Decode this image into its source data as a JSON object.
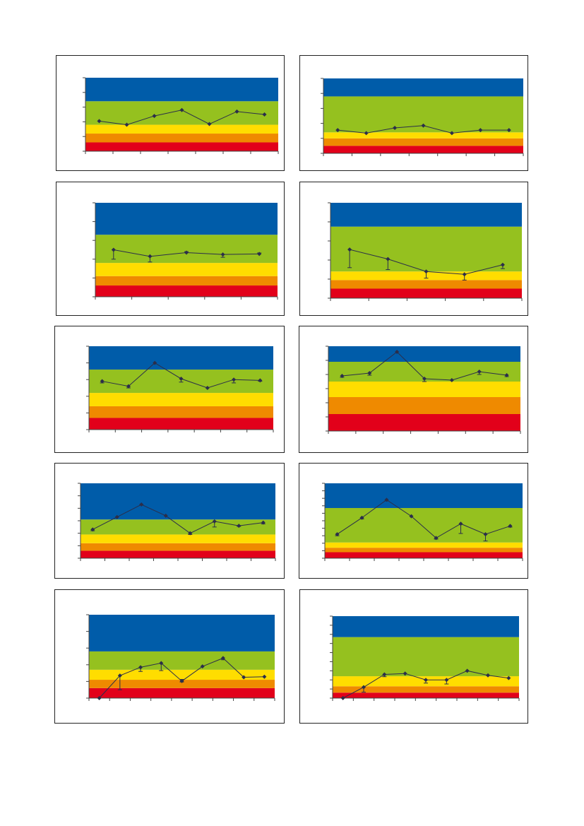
{
  "colors": {
    "band_red": "#E2001A",
    "band_orange": "#EF8A00",
    "band_yellow": "#FFDD00",
    "band_green": "#95C11F",
    "band_blue": "#005CA9",
    "line": "#2B2E4A",
    "axis": "#444444"
  },
  "chart_data": [
    {
      "type": "line",
      "title": "",
      "xlabel": "",
      "ylabel": "",
      "ylim": [
        0,
        5
      ],
      "bands": [
        0.6,
        1.2,
        1.8,
        3.4,
        5
      ],
      "series": [
        {
          "values": [
            2.05,
            1.8,
            2.4,
            2.8,
            1.85,
            2.7,
            2.5
          ]
        }
      ],
      "x": [
        0.5,
        1.5,
        2.5,
        3.5,
        4.5,
        5.5,
        6.5
      ],
      "xlim": [
        0,
        7
      ],
      "xticks": 7
    },
    {
      "type": "line",
      "title": "",
      "xlabel": "",
      "ylabel": "",
      "ylim": [
        0,
        5
      ],
      "bands": [
        0.5,
        1.0,
        1.4,
        3.8,
        5
      ],
      "series": [
        {
          "values": [
            1.55,
            1.35,
            1.7,
            1.85,
            1.35,
            1.55,
            1.55
          ]
        }
      ],
      "x": [
        0.5,
        1.5,
        2.5,
        3.5,
        4.5,
        5.5,
        6.5
      ],
      "xlim": [
        0,
        7
      ],
      "xticks": 7
    },
    {
      "type": "line",
      "title": "",
      "xlabel": "",
      "ylabel": "",
      "ylim": [
        0,
        5
      ],
      "bands": [
        0.6,
        1.1,
        1.8,
        3.3,
        5
      ],
      "series": [
        {
          "values": [
            2.5,
            2.15,
            2.35,
            2.25,
            2.28
          ],
          "err_low": [
            0.5,
            0.3,
            0,
            0.15,
            0
          ],
          "err_high": [
            0,
            0,
            0.05,
            0,
            0.05
          ]
        }
      ],
      "x": [
        0.5,
        1.5,
        2.5,
        3.5,
        4.5
      ],
      "xlim": [
        0,
        5
      ],
      "xticks": 5
    },
    {
      "type": "line",
      "title": "",
      "xlabel": "",
      "ylabel": "",
      "ylim": [
        0,
        5
      ],
      "bands": [
        0.5,
        0.95,
        1.4,
        3.75,
        5
      ],
      "series": [
        {
          "values": [
            2.55,
            2.05,
            1.4,
            1.25,
            1.75
          ],
          "err_low": [
            0.95,
            0.55,
            0.35,
            0.3,
            0.2
          ],
          "err_high": [
            0,
            0,
            0,
            0,
            0
          ]
        }
      ],
      "x": [
        0.5,
        1.5,
        2.5,
        3.5,
        4.5
      ],
      "xlim": [
        0,
        5
      ],
      "xticks": 5
    },
    {
      "type": "line",
      "title": "",
      "xlabel": "",
      "ylabel": "",
      "ylim": [
        0,
        5
      ],
      "bands": [
        0.7,
        1.4,
        2.2,
        3.6,
        5
      ],
      "series": [
        {
          "values": [
            2.9,
            2.6,
            4,
            3.05,
            2.5,
            3,
            2.95
          ],
          "err_low": [
            0.1,
            0.1,
            0,
            0.2,
            0,
            0.2,
            0.05
          ],
          "err_high": [
            0,
            0,
            0,
            0,
            0,
            0,
            0
          ]
        }
      ],
      "x": [
        0.5,
        1.5,
        2.5,
        3.5,
        4.5,
        5.5,
        6.5
      ],
      "xlim": [
        0,
        7
      ],
      "xticks": 7
    },
    {
      "type": "line",
      "title": "",
      "xlabel": "",
      "ylabel": "",
      "ylim": [
        0,
        6
      ],
      "bands": [
        1.2,
        2.4,
        3.5,
        4.9,
        6
      ],
      "series": [
        {
          "values": [
            3.9,
            4.1,
            5.6,
            3.7,
            3.6,
            4.2,
            3.95
          ],
          "err_low": [
            0.1,
            0.15,
            0,
            0.2,
            0,
            0.2,
            0.1
          ],
          "err_high": [
            0,
            0,
            0,
            0,
            0,
            0,
            0
          ]
        }
      ],
      "x": [
        0.5,
        1.5,
        2.5,
        3.5,
        4.5,
        5.5,
        6.5
      ],
      "xlim": [
        0,
        7
      ],
      "xticks": 7
    },
    {
      "type": "line",
      "title": "",
      "xlabel": "",
      "ylabel": "",
      "ylim": [
        0,
        6
      ],
      "bands": [
        0.6,
        1.2,
        1.9,
        3.1,
        6
      ],
      "series": [
        {
          "values": [
            2.3,
            3.3,
            4.3,
            3.4,
            2,
            2.95,
            2.6,
            2.85
          ],
          "err_low": [
            0.1,
            0,
            0.05,
            0,
            0.1,
            0.45,
            0.05,
            0.1
          ],
          "err_high": [
            0,
            0,
            0,
            0,
            0,
            0,
            0,
            0
          ]
        }
      ],
      "x": [
        0.5,
        1.5,
        2.5,
        3.5,
        4.5,
        5.5,
        6.5,
        7.5
      ],
      "xlim": [
        0,
        8
      ],
      "xticks": 8
    },
    {
      "type": "line",
      "title": "",
      "xlabel": "",
      "ylabel": "",
      "ylim": [
        0,
        10
      ],
      "bands": [
        0.8,
        1.4,
        2.1,
        6.7,
        10
      ],
      "series": [
        {
          "values": [
            3.2,
            5.4,
            7.8,
            5.6,
            2.7,
            4.6,
            3.2,
            4.3
          ],
          "err_low": [
            0.2,
            0.15,
            0.15,
            0,
            0.15,
            1.3,
            0.9,
            0.15
          ],
          "err_high": [
            0,
            0,
            0,
            0,
            0,
            0,
            0,
            0
          ]
        }
      ],
      "x": [
        0.5,
        1.5,
        2.5,
        3.5,
        4.5,
        5.5,
        6.5,
        7.5
      ],
      "xlim": [
        0,
        8
      ],
      "xticks": 8
    },
    {
      "type": "line",
      "title": "",
      "xlabel": "",
      "ylabel": "",
      "ylim": [
        0,
        5
      ],
      "bands": [
        0.6,
        1.1,
        1.7,
        2.8,
        5
      ],
      "series": [
        {
          "values": [
            0,
            1.35,
            1.85,
            2.1,
            1.02,
            1.9,
            2.4,
            1.25,
            1.28
          ],
          "err_low": [
            0,
            0.85,
            0.25,
            0.45,
            0.05,
            0,
            0.1,
            0,
            0
          ],
          "err_high": [
            0,
            0,
            0,
            0,
            0.1,
            0,
            0,
            0,
            0
          ]
        }
      ],
      "x": [
        0.5,
        1.5,
        2.5,
        3.5,
        4.5,
        5.5,
        6.5,
        7.5,
        8.5
      ],
      "xlim": [
        0,
        9
      ],
      "xticks": 9
    },
    {
      "type": "line",
      "title": "",
      "xlabel": "",
      "ylabel": "",
      "ylim": [
        0,
        9
      ],
      "bands": [
        0.6,
        1.3,
        2.4,
        6.7,
        9
      ],
      "series": [
        {
          "values": [
            0,
            1.2,
            2.6,
            2.7,
            2,
            2,
            3,
            2.5,
            2.2
          ],
          "err_low": [
            0,
            0.55,
            0.25,
            0,
            0.35,
            0.45,
            0,
            0,
            0
          ],
          "err_high": [
            0,
            0,
            0,
            0,
            0,
            0,
            0,
            0,
            0
          ]
        }
      ],
      "x": [
        0.5,
        1.5,
        2.5,
        3.5,
        4.5,
        5.5,
        6.5,
        7.5,
        8.5
      ],
      "xlim": [
        0,
        9
      ],
      "xticks": 9
    }
  ]
}
